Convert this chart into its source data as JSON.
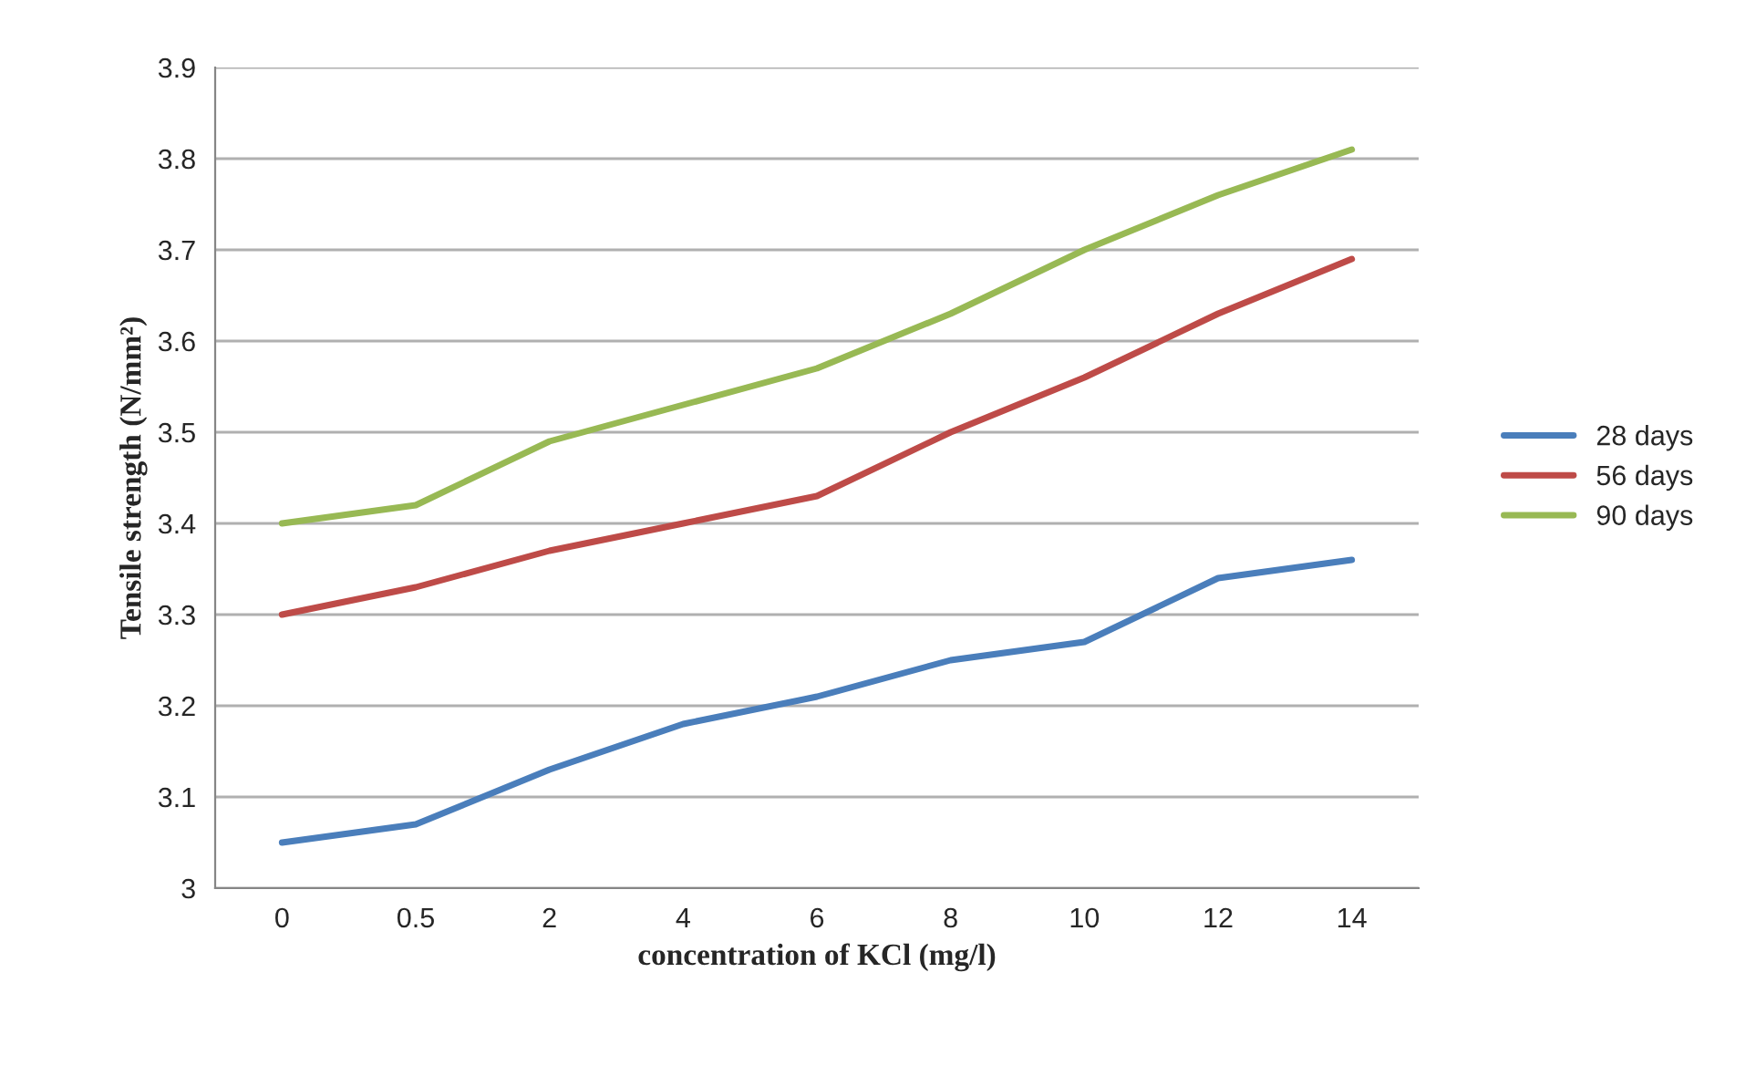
{
  "chart_data": {
    "type": "line",
    "xlabel": "concentration of KCl (mg/l)",
    "ylabel": "Tensile strength (N/mm²)",
    "categories": [
      "0",
      "0.5",
      "2",
      "4",
      "6",
      "8",
      "10",
      "12",
      "14"
    ],
    "series": [
      {
        "name": "28 days",
        "color": "#4a7ebb",
        "values": [
          3.05,
          3.07,
          3.13,
          3.18,
          3.21,
          3.25,
          3.27,
          3.34,
          3.36
        ]
      },
      {
        "name": "56 days",
        "color": "#be4b48",
        "values": [
          3.3,
          3.33,
          3.37,
          3.4,
          3.43,
          3.5,
          3.56,
          3.63,
          3.69
        ]
      },
      {
        "name": "90 days",
        "color": "#98b954",
        "values": [
          3.4,
          3.42,
          3.49,
          3.53,
          3.57,
          3.63,
          3.7,
          3.76,
          3.81
        ]
      }
    ],
    "ylim": [
      3,
      3.9
    ],
    "yticks": [
      3,
      3.1,
      3.2,
      3.3,
      3.4,
      3.5,
      3.6,
      3.7,
      3.8,
      3.9
    ],
    "grid": "y",
    "legend": "right",
    "marker": "none",
    "line_style": "solid"
  }
}
